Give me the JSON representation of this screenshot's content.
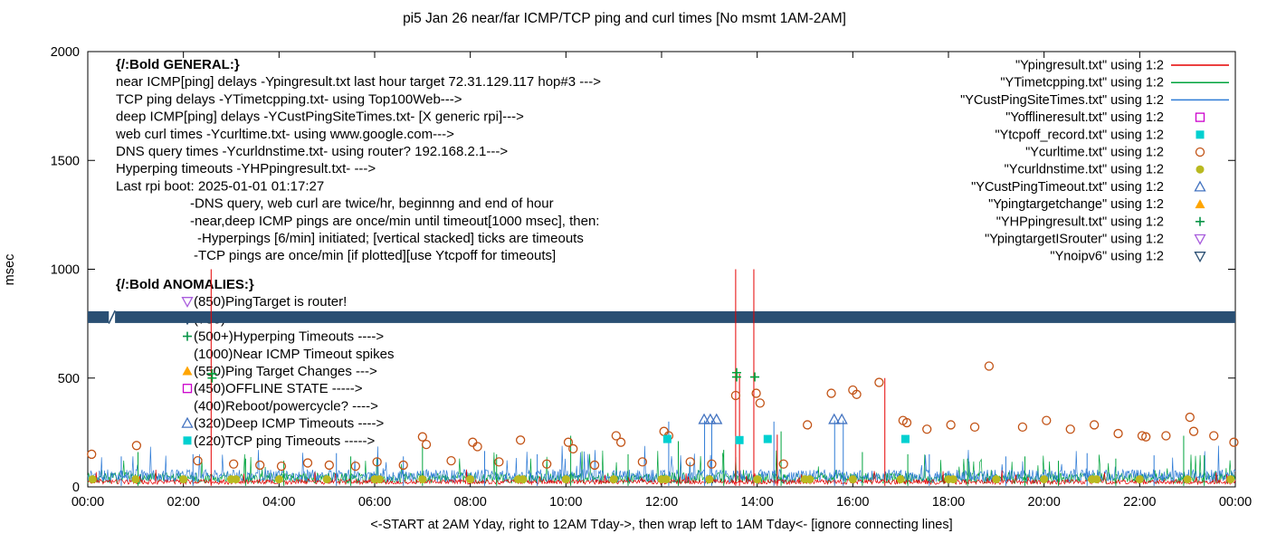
{
  "chart_data": {
    "type": "line",
    "title": "pi5 Jan 26  near/far ICMP/TCP ping and curl times [No msmt 1AM-2AM]",
    "ylabel": "msec",
    "xlabel": "<-START at 2AM Yday, right to 12AM Tday->, then wrap left to 1AM Tday<- [ignore connecting lines]",
    "xlim": [
      0,
      24
    ],
    "ylim": [
      0,
      2000
    ],
    "grid": false,
    "x_ticks": [
      {
        "h": 0,
        "label": "00:00"
      },
      {
        "h": 2,
        "label": "02:00"
      },
      {
        "h": 4,
        "label": "04:00"
      },
      {
        "h": 6,
        "label": "06:00"
      },
      {
        "h": 8,
        "label": "08:00"
      },
      {
        "h": 10,
        "label": "10:00"
      },
      {
        "h": 12,
        "label": "12:00"
      },
      {
        "h": 14,
        "label": "14:00"
      },
      {
        "h": 16,
        "label": "16:00"
      },
      {
        "h": 18,
        "label": "18:00"
      },
      {
        "h": 20,
        "label": "20:00"
      },
      {
        "h": 22,
        "label": "22:00"
      },
      {
        "h": 24,
        "label": "00:00"
      }
    ],
    "y_ticks": [
      {
        "v": 0,
        "label": "0"
      },
      {
        "v": 500,
        "label": "500"
      },
      {
        "v": 1000,
        "label": "1000"
      },
      {
        "v": 1500,
        "label": "1500"
      },
      {
        "v": 2000,
        "label": "2000"
      }
    ],
    "noise_series": [
      {
        "name": "YTimetcpping.txt",
        "color": "#00a33c",
        "base": 15,
        "amp": 50,
        "burst_prob": 0.05,
        "burst_amp": 120,
        "seed": 7,
        "spikes": [
          [
            1.05,
            160
          ],
          [
            3.3,
            130
          ],
          [
            4.1,
            120
          ],
          [
            5.5,
            140
          ],
          [
            7.0,
            195
          ],
          [
            8.55,
            150
          ],
          [
            10.1,
            235
          ],
          [
            11.3,
            150
          ],
          [
            12.35,
            210
          ],
          [
            13.3,
            170
          ],
          [
            14.5,
            255
          ],
          [
            16.2,
            160
          ],
          [
            17.15,
            150
          ],
          [
            18.4,
            130
          ],
          [
            19.6,
            140
          ],
          [
            20.3,
            120
          ],
          [
            21.5,
            130
          ],
          [
            22.92,
            235
          ],
          [
            23.35,
            145
          ]
        ]
      },
      {
        "name": "YCustPingSiteTimes.txt",
        "color": "#2e7bd6",
        "base": 20,
        "amp": 60,
        "burst_prob": 0.04,
        "burst_amp": 140,
        "seed": 13,
        "spikes": [
          [
            0.7,
            140
          ],
          [
            2.2,
            150
          ],
          [
            5.2,
            155
          ],
          [
            6.6,
            140
          ],
          [
            8.3,
            165
          ],
          [
            9.4,
            150
          ],
          [
            12.15,
            300
          ],
          [
            12.9,
            305
          ],
          [
            13.05,
            305
          ],
          [
            14.35,
            300
          ],
          [
            15.62,
            305
          ],
          [
            15.8,
            305
          ],
          [
            17.6,
            150
          ],
          [
            19.2,
            140
          ],
          [
            20.9,
            155
          ],
          [
            22.3,
            145
          ]
        ]
      },
      {
        "name": "Ypingresult.txt",
        "color": "#e60000",
        "base": 12,
        "amp": 22,
        "burst_prob": 0.03,
        "burst_amp": 50,
        "seed": 3,
        "spikes": [
          [
            2.58,
            1000
          ],
          [
            13.55,
            1000
          ],
          [
            13.63,
            520
          ],
          [
            13.93,
            1000
          ],
          [
            14.42,
            240
          ],
          [
            16.67,
            500
          ]
        ]
      }
    ],
    "band": {
      "name": "Ynoipv6",
      "value": 780,
      "half_height_msec": 27,
      "color": "#2a4f73",
      "segments": [
        [
          0,
          0.44
        ],
        [
          0.57,
          24
        ]
      ],
      "connector": [
        [
          0.44,
          750
        ],
        [
          0.57,
          810
        ]
      ]
    },
    "point_series": [
      {
        "name": "Ycurltime.txt",
        "marker": "circle-open",
        "color": "#c25316",
        "points": [
          [
            0.08,
            150
          ],
          [
            1.02,
            190
          ],
          [
            2.3,
            120
          ],
          [
            3.05,
            105
          ],
          [
            3.6,
            100
          ],
          [
            4.05,
            95
          ],
          [
            4.6,
            110
          ],
          [
            5.05,
            100
          ],
          [
            5.6,
            95
          ],
          [
            6.05,
            115
          ],
          [
            6.6,
            100
          ],
          [
            7.0,
            230
          ],
          [
            7.08,
            195
          ],
          [
            7.6,
            120
          ],
          [
            8.05,
            205
          ],
          [
            8.15,
            185
          ],
          [
            8.6,
            115
          ],
          [
            9.05,
            215
          ],
          [
            9.6,
            105
          ],
          [
            10.05,
            205
          ],
          [
            10.15,
            175
          ],
          [
            10.6,
            100
          ],
          [
            11.05,
            235
          ],
          [
            11.15,
            205
          ],
          [
            11.6,
            115
          ],
          [
            12.05,
            255
          ],
          [
            12.15,
            235
          ],
          [
            12.6,
            115
          ],
          [
            13.05,
            105
          ],
          [
            13.55,
            420
          ],
          [
            13.98,
            430
          ],
          [
            14.06,
            385
          ],
          [
            14.55,
            105
          ],
          [
            15.05,
            285
          ],
          [
            15.55,
            430
          ],
          [
            16.0,
            445
          ],
          [
            16.08,
            425
          ],
          [
            16.55,
            480
          ],
          [
            17.05,
            305
          ],
          [
            17.13,
            295
          ],
          [
            17.55,
            265
          ],
          [
            18.05,
            285
          ],
          [
            18.55,
            275
          ],
          [
            18.85,
            555
          ],
          [
            19.55,
            275
          ],
          [
            20.05,
            305
          ],
          [
            20.55,
            265
          ],
          [
            21.05,
            285
          ],
          [
            21.55,
            245
          ],
          [
            22.05,
            235
          ],
          [
            22.13,
            230
          ],
          [
            22.55,
            235
          ],
          [
            23.05,
            320
          ],
          [
            23.13,
            255
          ],
          [
            23.55,
            235
          ],
          [
            23.97,
            205
          ]
        ]
      },
      {
        "name": "Ycurldnstime.txt",
        "marker": "circle-filled",
        "color": "#b9b920",
        "points": [
          [
            0.1,
            35
          ],
          [
            1.0,
            35
          ],
          [
            2.0,
            35
          ],
          [
            3.0,
            35
          ],
          [
            3.1,
            35
          ],
          [
            4.0,
            35
          ],
          [
            5.0,
            35
          ],
          [
            6.0,
            35
          ],
          [
            6.1,
            35
          ],
          [
            7.0,
            35
          ],
          [
            8.0,
            35
          ],
          [
            9.0,
            35
          ],
          [
            9.1,
            35
          ],
          [
            10.0,
            35
          ],
          [
            11.0,
            35
          ],
          [
            12.0,
            35
          ],
          [
            12.1,
            35
          ],
          [
            13.0,
            35
          ],
          [
            14.0,
            35
          ],
          [
            15.0,
            35
          ],
          [
            15.1,
            35
          ],
          [
            16.0,
            35
          ],
          [
            17.0,
            35
          ],
          [
            18.0,
            35
          ],
          [
            18.1,
            35
          ],
          [
            19.0,
            35
          ],
          [
            20.0,
            35
          ],
          [
            21.0,
            35
          ],
          [
            21.1,
            35
          ],
          [
            22.0,
            35
          ],
          [
            23.0,
            35
          ],
          [
            23.9,
            35
          ]
        ]
      },
      {
        "name": "Ytcpoff_record.txt",
        "marker": "square-filled",
        "color": "#00d0d0",
        "points": [
          [
            12.12,
            220
          ],
          [
            13.63,
            215
          ],
          [
            14.22,
            220
          ],
          [
            17.1,
            220
          ]
        ]
      },
      {
        "name": "YCustPingTimeout.txt",
        "marker": "triangle-open",
        "color": "#4373c0",
        "points": [
          [
            12.89,
            310
          ],
          [
            13.02,
            310
          ],
          [
            13.15,
            310
          ],
          [
            15.61,
            310
          ],
          [
            15.77,
            310
          ]
        ]
      },
      {
        "name": "YHPpingresult.txt",
        "marker": "plus",
        "color": "#00a33c",
        "points": [
          [
            2.6,
            500
          ],
          [
            2.6,
            520
          ],
          [
            13.57,
            505
          ],
          [
            13.57,
            525
          ],
          [
            13.95,
            505
          ]
        ]
      }
    ]
  },
  "legend": {
    "entries": [
      {
        "label": "\"Ypingresult.txt\" using 1:2",
        "marker": "line",
        "color": "#e60000"
      },
      {
        "label": "\"YTimetcpping.txt\" using 1:2",
        "marker": "line",
        "color": "#00a33c"
      },
      {
        "label": "\"YCustPingSiteTimes.txt\" using 1:2",
        "marker": "line",
        "color": "#2e7bd6"
      },
      {
        "label": "\"Yofflineresult.txt\" using 1:2",
        "marker": "square-open",
        "color": "#cc00cc"
      },
      {
        "label": "\"Ytcpoff_record.txt\" using 1:2",
        "marker": "square-filled",
        "color": "#00d0d0"
      },
      {
        "label": "\"Ycurltime.txt\" using 1:2",
        "marker": "circle-open",
        "color": "#c25316"
      },
      {
        "label": "\"Ycurldnstime.txt\" using 1:2",
        "marker": "circle-filled",
        "color": "#b9b920"
      },
      {
        "label": "\"YCustPingTimeout.txt\" using 1:2",
        "marker": "triangle-open",
        "color": "#4373c0"
      },
      {
        "label": "\"Ypingtargetchange\" using 1:2",
        "marker": "triangle-filled",
        "color": "#ffa500"
      },
      {
        "label": "\"YHPpingresult.txt\" using 1:2",
        "marker": "plus",
        "color": "#089447"
      },
      {
        "label": "\"YpingtargetISrouter\" using 1:2",
        "marker": "nabla-open",
        "color": "#a95ddd"
      },
      {
        "label": "\"Ynoipv6\" using 1:2",
        "marker": "nabla-open",
        "color": "#2a4f73"
      }
    ]
  },
  "annotations": {
    "general": {
      "lines": [
        {
          "text": "{/:Bold GENERAL:}",
          "bold": true
        },
        {
          "text": "near ICMP[ping] delays -Ypingresult.txt last hour target 72.31.129.117 hop#3 --->"
        },
        {
          "text": "TCP ping delays -YTimetcpping.txt- using Top100Web--->"
        },
        {
          "text": "deep ICMP[ping] delays -YCustPingSiteTimes.txt- [X generic rpi]--->"
        },
        {
          "text": "web curl times -Ycurltime.txt- using www.google.com--->"
        },
        {
          "text": "DNS query times -Ycurldnstime.txt- using router? 192.168.2.1--->"
        },
        {
          "text": "Hyperping timeouts -YHPpingresult.txt- --->"
        },
        {
          "text": "Last rpi boot: 2025-01-01 01:17:27"
        },
        {
          "text": "-DNS query, web curl are twice/hr, beginnng and end of hour",
          "indent": 82
        },
        {
          "text": "-near,deep ICMP pings are once/min until timeout[1000 msec], then:",
          "indent": 82
        },
        {
          "text": "-Hyperpings [6/min] initiated; [vertical stacked] ticks are timeouts",
          "indent": 90
        },
        {
          "text": "-TCP pings are once/min [if plotted][use Ytcpoff for timeouts]",
          "indent": 86
        }
      ]
    },
    "anomalies": {
      "title": "{/:Bold ANOMALIES:}",
      "items": [
        {
          "marker": "nabla-open",
          "color": "#a95ddd",
          "text": "(850)PingTarget is router!"
        },
        {
          "marker": "nabla-open",
          "color": "#2a4f73",
          "text": "(780)"
        },
        {
          "marker": "plus",
          "color": "#089447",
          "text": "(500+)Hyperping Timeouts ---->"
        },
        {
          "marker": null,
          "text": "(1000)Near ICMP Timeout spikes"
        },
        {
          "marker": "triangle-filled",
          "color": "#ffa500",
          "text": "(550)Ping Target Changes --->"
        },
        {
          "marker": "square-open",
          "color": "#cc00cc",
          "text": "(450)OFFLINE STATE ----->"
        },
        {
          "marker": null,
          "text": "(400)Reboot/powercycle? ---->"
        },
        {
          "marker": "triangle-open",
          "color": "#4373c0",
          "text": "(320)Deep ICMP Timeouts ---->"
        },
        {
          "marker": "square-filled",
          "color": "#00d0d0",
          "text": "(220)TCP ping Timeouts ----->"
        }
      ]
    }
  }
}
